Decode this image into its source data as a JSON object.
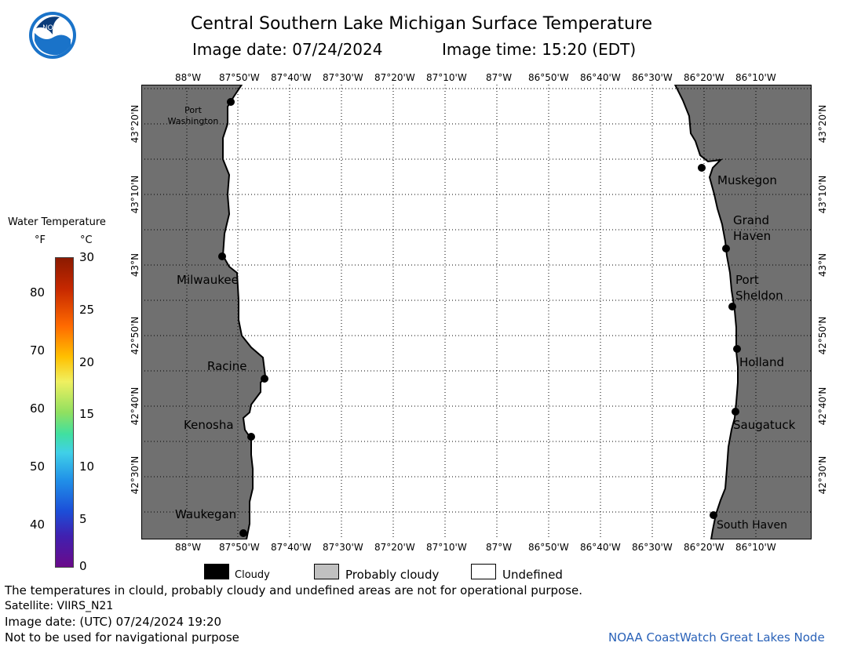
{
  "header": {
    "title": "Central Southern Lake Michigan Surface Temperature",
    "image_date": "Image date: 07/24/2024",
    "image_time": "Image time: 15:20 (EDT)"
  },
  "logo": {
    "text": "NOAA"
  },
  "map": {
    "lon_labels_top": [
      "88°W",
      "87°50'W",
      "87°40'W",
      "87°30'W",
      "87°20'W",
      "87°10'W",
      "87°W",
      "86°50'W",
      "86°40'W",
      "86°30'W",
      "86°20'W",
      "86°10'W"
    ],
    "lon_labels_bottom": [
      "88°W",
      "87°50'W",
      "87°40'W",
      "87°30'W",
      "87°20'W",
      "87°10'W",
      "87°W",
      "86°50'W",
      "86°40'W",
      "86°30'W",
      "86°20'W",
      "86°10'W"
    ],
    "lat_labels": [
      "43°20'N",
      "43°10'N",
      "43°N",
      "42°50'N",
      "42°40'N",
      "42°30'N"
    ],
    "cities": {
      "port_washington": "Port Washington",
      "milwaukee": "Milwaukee",
      "racine": "Racine",
      "kenosha": "Kenosha",
      "waukegan": "Waukegan",
      "muskegon": "Muskegon",
      "grand_haven": "Grand Haven",
      "port_sheldon": "Port Sheldon",
      "holland": "Holland",
      "saugatuck": "Saugatuck",
      "south_haven": "South Haven"
    },
    "colors": {
      "land": "#707070",
      "water": "#ffffff",
      "grid": "#000000"
    }
  },
  "colorbar": {
    "title": "Water Temperature",
    "unit_f": "°F",
    "unit_c": "°C",
    "f_ticks": [
      "80",
      "70",
      "60",
      "50",
      "40"
    ],
    "c_ticks": [
      "30",
      "25",
      "20",
      "15",
      "10",
      "5",
      "0"
    ]
  },
  "legend": {
    "cloudy": "Cloudy",
    "probably_cloudy": "Probably cloudy",
    "undefined": "Undefined",
    "colors": {
      "cloudy": "#000000",
      "probably_cloudy": "#c0c0c0",
      "undefined": "#ffffff"
    }
  },
  "footer": {
    "line1": "The temperatures in clould, probably cloudy and undefined areas are not for operational purpose.",
    "line2": "Satellite: VIIRS_N21",
    "line3": "Image date: (UTC) 07/24/2024  19:20",
    "line4": "Not to be used for navigational purpose",
    "credit": "NOAA CoastWatch Great Lakes Node"
  }
}
